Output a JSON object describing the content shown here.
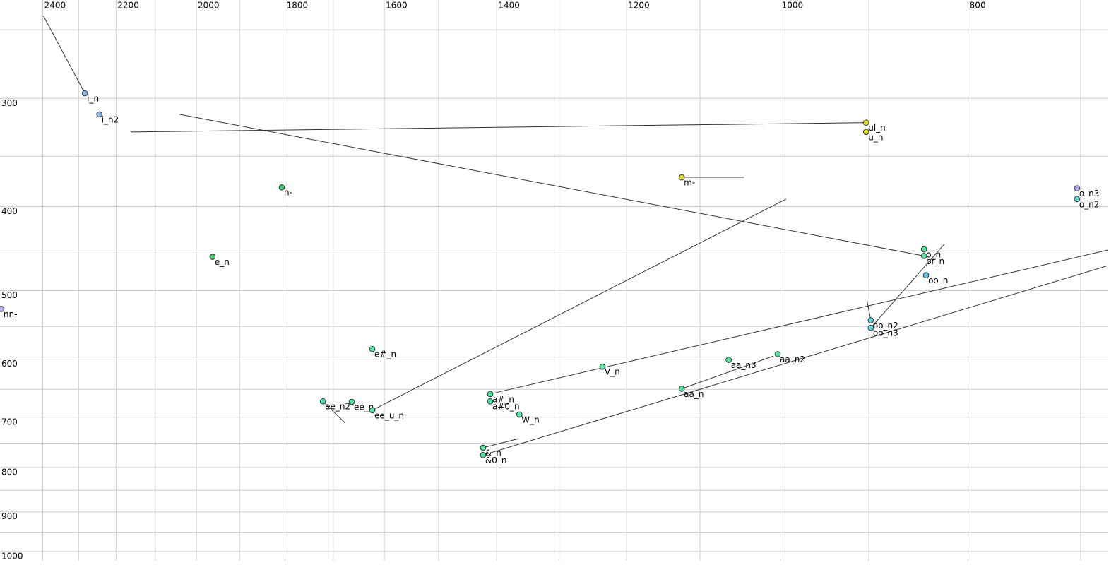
{
  "chart_data": {
    "type": "scatter",
    "x_scale": "log",
    "y_scale": "log",
    "xlim": [
      2525,
      678
    ],
    "ylim": [
      231,
      1025
    ],
    "xticks": [
      2400,
      2200,
      2000,
      1800,
      1600,
      1400,
      1200,
      1000,
      800
    ],
    "yticks": [
      300,
      400,
      500,
      600,
      700,
      800,
      900,
      1000
    ],
    "xgrid": [
      2400,
      2300,
      2200,
      2100,
      2000,
      1900,
      1800,
      1700,
      1600,
      1500,
      1400,
      1300,
      1200,
      1100,
      1000,
      900,
      800,
      700
    ],
    "ygrid": [
      250,
      300,
      350,
      400,
      450,
      500,
      550,
      600,
      650,
      700,
      750,
      800,
      850,
      900,
      950,
      1000
    ],
    "grid_color": "#cccccc",
    "line_color": "#333333",
    "points": [
      {
        "label": "i_n",
        "x": 2283,
        "y": 296,
        "color": "#8cb8f0",
        "end": [
          2398,
          241
        ]
      },
      {
        "label": "i_n2",
        "x": 2244,
        "y": 313,
        "color": "#8cb8f0"
      },
      {
        "label": "ul_n",
        "x": 903,
        "y": 320,
        "color": "#e0e020",
        "end": [
          2162,
          328
        ]
      },
      {
        "label": "u_n",
        "x": 903,
        "y": 328,
        "color": "#e0e020"
      },
      {
        "label": "m-",
        "x": 1124,
        "y": 370,
        "color": "#e0e020",
        "end": [
          1044,
          370
        ]
      },
      {
        "label": "n-",
        "x": 1807,
        "y": 380,
        "color": "#44d070"
      },
      {
        "label": "o_n3",
        "x": 703,
        "y": 381,
        "color": "#b0a8f0"
      },
      {
        "label": "o_n2",
        "x": 703,
        "y": 392,
        "color": "#60d8e0"
      },
      {
        "label": "e_n",
        "x": 1962,
        "y": 457,
        "color": "#44d070"
      },
      {
        "label": "o_n",
        "x": 843,
        "y": 448,
        "color": "#50e8a0"
      },
      {
        "label": "or_n",
        "x": 843,
        "y": 456,
        "color": "#50e8a0",
        "end": [
          2041,
          313
        ]
      },
      {
        "label": "oo_n",
        "x": 841,
        "y": 480,
        "color": "#60c8f0"
      },
      {
        "label": "nn-",
        "x": 2521,
        "y": 525,
        "color": "#b0a8f0"
      },
      {
        "label": "oo_n2",
        "x": 898,
        "y": 541,
        "color": "#60d8e0",
        "end": [
          902,
          514
        ]
      },
      {
        "label": "oo_n3",
        "x": 898,
        "y": 552,
        "color": "#60d8e0",
        "end": [
          823,
          442
        ]
      },
      {
        "label": "e#_n",
        "x": 1623,
        "y": 584,
        "color": "#50e8a0"
      },
      {
        "label": "V_n",
        "x": 1235,
        "y": 612,
        "color": "#50e8a0"
      },
      {
        "label": "aa_n3",
        "x": 1063,
        "y": 601,
        "color": "#50e8a0"
      },
      {
        "label": "aa_n2",
        "x": 1003,
        "y": 592,
        "color": "#50e8a0"
      },
      {
        "label": "aa_n",
        "x": 1124,
        "y": 649,
        "color": "#50e8a0",
        "end": [
          1008,
          595
        ]
      },
      {
        "label": "a#_n",
        "x": 1411,
        "y": 658,
        "color": "#50e8a0",
        "end": [
          678,
          449
        ]
      },
      {
        "label": "a#0_n",
        "x": 1411,
        "y": 671,
        "color": "#50e8a0"
      },
      {
        "label": "W_n",
        "x": 1363,
        "y": 695,
        "color": "#50e8a0"
      },
      {
        "label": "ee_n2",
        "x": 1721,
        "y": 671,
        "color": "#50e8a0",
        "end": [
          1677,
          710
        ]
      },
      {
        "label": "ee_n",
        "x": 1663,
        "y": 672,
        "color": "#50e8a0"
      },
      {
        "label": "ee_u_n",
        "x": 1623,
        "y": 687,
        "color": "#50e8a0",
        "end": [
          993,
          392
        ]
      },
      {
        "label": "&_n",
        "x": 1423,
        "y": 759,
        "color": "#50e8a0",
        "end": [
          1364,
          741
        ]
      },
      {
        "label": "&0_n",
        "x": 1423,
        "y": 774,
        "color": "#50e8a0",
        "end": [
          678,
          468
        ]
      }
    ]
  }
}
